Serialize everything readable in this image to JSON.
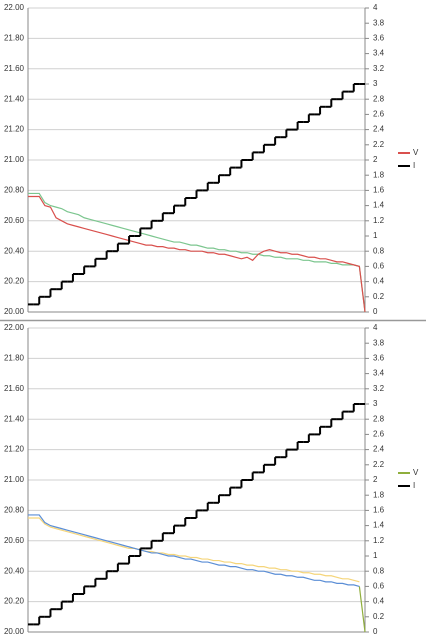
{
  "chart_data": [
    {
      "type": "line",
      "categories": [
        null,
        null,
        null,
        null,
        null,
        null,
        null,
        null,
        null,
        null,
        null,
        null,
        null,
        null,
        null,
        null,
        null,
        null,
        null,
        null,
        null,
        null,
        null,
        null,
        null,
        null,
        null,
        null,
        null,
        null,
        null,
        null,
        null,
        null,
        null,
        null,
        null,
        null,
        null,
        null,
        null,
        null,
        null,
        null,
        null,
        null,
        null,
        null,
        null,
        null,
        null,
        null,
        null,
        null,
        null,
        null,
        null,
        null,
        null,
        null,
        null
      ],
      "ylim": [
        20,
        22
      ],
      "yticks": [
        {
          "value": 20,
          "label": "20.00"
        },
        {
          "value": 20.2,
          "label": "20.20"
        },
        {
          "value": 20.4,
          "label": "20.40"
        },
        {
          "value": 20.6,
          "label": "20.60"
        },
        {
          "value": 20.8,
          "label": "20.80"
        },
        {
          "value": 21,
          "label": "21.00"
        },
        {
          "value": 21.2,
          "label": "21.20"
        },
        {
          "value": 21.4,
          "label": "21.40"
        },
        {
          "value": 21.6,
          "label": "21.60"
        },
        {
          "value": 21.8,
          "label": "21.80"
        },
        {
          "value": 22,
          "label": "22.00"
        }
      ],
      "y2lim": [
        0,
        4
      ],
      "y2ticks": [
        0,
        0.2,
        0.4,
        0.6,
        0.8,
        1,
        1.2,
        1.4,
        1.6,
        1.8,
        2,
        2.2,
        2.4,
        2.6,
        2.8,
        3,
        3.2,
        3.4,
        3.6,
        3.8,
        4
      ],
      "grid": true,
      "series": [
        {
          "color": "#7cc68f",
          "values": [
            20.78,
            20.78,
            20.78,
            20.72,
            20.7,
            20.69,
            20.68,
            20.66,
            20.65,
            20.64,
            20.62,
            20.61,
            20.6,
            20.59,
            20.58,
            20.57,
            20.56,
            20.55,
            20.54,
            20.53,
            20.52,
            20.51,
            20.5,
            20.49,
            20.48,
            20.47,
            20.46,
            20.46,
            20.45,
            20.44,
            20.44,
            20.43,
            20.42,
            20.42,
            20.41,
            20.41,
            20.4,
            20.4,
            20.39,
            20.39,
            20.38,
            20.38,
            20.37,
            20.37,
            20.36,
            20.36,
            20.35,
            20.35,
            20.35,
            20.34,
            20.34,
            20.33,
            20.33,
            20.33,
            20.32,
            20.32,
            20.31,
            20.31,
            20.31,
            20.3,
            20.0
          ]
        },
        {
          "name": "V",
          "color": "#d9504d",
          "values": [
            20.76,
            20.76,
            20.76,
            20.7,
            20.69,
            20.62,
            20.6,
            20.58,
            20.57,
            20.56,
            20.55,
            20.54,
            20.53,
            20.52,
            20.51,
            20.5,
            20.49,
            20.48,
            20.47,
            20.46,
            20.45,
            20.44,
            20.44,
            20.43,
            20.43,
            20.42,
            20.42,
            20.41,
            20.41,
            20.4,
            20.4,
            20.4,
            20.39,
            20.39,
            20.38,
            20.38,
            20.37,
            20.36,
            20.35,
            20.36,
            20.34,
            20.38,
            20.4,
            20.41,
            20.4,
            20.39,
            20.39,
            20.38,
            20.38,
            20.37,
            20.36,
            20.36,
            20.35,
            20.35,
            20.34,
            20.33,
            20.33,
            20.32,
            20.31,
            20.3,
            20.0
          ]
        },
        {
          "name": "I",
          "color": "#000000",
          "axis": "y2",
          "step": true,
          "values": [
            0.1,
            0.1,
            0.2,
            0.2,
            0.3,
            0.3,
            0.4,
            0.4,
            0.5,
            0.5,
            0.6,
            0.6,
            0.7,
            0.7,
            0.8,
            0.8,
            0.9,
            0.9,
            1,
            1,
            1.1,
            1.1,
            1.2,
            1.2,
            1.3,
            1.3,
            1.4,
            1.4,
            1.5,
            1.5,
            1.6,
            1.6,
            1.7,
            1.7,
            1.8,
            1.8,
            1.9,
            1.9,
            2,
            2,
            2.1,
            2.1,
            2.2,
            2.2,
            2.3,
            2.3,
            2.4,
            2.4,
            2.5,
            2.5,
            2.6,
            2.6,
            2.7,
            2.7,
            2.8,
            2.8,
            2.9,
            2.9,
            3,
            3,
            null
          ]
        }
      ]
    },
    {
      "type": "line",
      "categories": [
        null,
        null,
        null,
        null,
        null,
        null,
        null,
        null,
        null,
        null,
        null,
        null,
        null,
        null,
        null,
        null,
        null,
        null,
        null,
        null,
        null,
        null,
        null,
        null,
        null,
        null,
        null,
        null,
        null,
        null,
        null,
        null,
        null,
        null,
        null,
        null,
        null,
        null,
        null,
        null,
        null,
        null,
        null,
        null,
        null,
        null,
        null,
        null,
        null,
        null,
        null,
        null,
        null,
        null,
        null,
        null,
        null,
        null,
        null,
        null,
        null
      ],
      "ylim": [
        20,
        22
      ],
      "yticks": [
        {
          "value": 20,
          "label": "20.00"
        },
        {
          "value": 20.2,
          "label": "20.20"
        },
        {
          "value": 20.4,
          "label": "20.40"
        },
        {
          "value": 20.6,
          "label": "20.60"
        },
        {
          "value": 20.8,
          "label": "20.80"
        },
        {
          "value": 21,
          "label": "21.00"
        },
        {
          "value": 21.2,
          "label": "21.20"
        },
        {
          "value": 21.4,
          "label": "21.40"
        },
        {
          "value": 21.6,
          "label": "21.60"
        },
        {
          "value": 21.8,
          "label": "21.80"
        },
        {
          "value": 22,
          "label": "22.00"
        }
      ],
      "y2lim": [
        0,
        4
      ],
      "y2ticks": [
        0,
        0.2,
        0.4,
        0.6,
        0.8,
        1,
        1.2,
        1.4,
        1.6,
        1.8,
        2,
        2.2,
        2.4,
        2.6,
        2.8,
        3,
        3.2,
        3.4,
        3.6,
        3.8,
        4
      ],
      "grid": true,
      "series": [
        {
          "color": "#f5d57a",
          "values": [
            20.75,
            20.75,
            20.75,
            20.71,
            20.69,
            20.68,
            20.67,
            20.66,
            20.65,
            20.64,
            20.63,
            20.62,
            20.61,
            20.6,
            20.59,
            20.58,
            20.57,
            20.56,
            20.55,
            20.55,
            20.54,
            20.53,
            20.53,
            20.52,
            20.52,
            20.51,
            20.51,
            20.5,
            20.5,
            20.49,
            20.49,
            20.48,
            20.48,
            20.47,
            20.47,
            20.46,
            20.46,
            20.45,
            20.45,
            20.44,
            20.44,
            20.43,
            20.43,
            20.42,
            20.42,
            20.41,
            20.41,
            20.4,
            20.4,
            20.39,
            20.39,
            20.38,
            20.38,
            20.37,
            20.37,
            20.36,
            20.35,
            20.35,
            20.34,
            20.33,
            null
          ]
        },
        {
          "color": "#5b8ed6",
          "values": [
            20.77,
            20.77,
            20.77,
            20.72,
            20.7,
            20.69,
            20.68,
            20.67,
            20.66,
            20.65,
            20.64,
            20.63,
            20.62,
            20.61,
            20.6,
            20.59,
            20.58,
            20.57,
            20.56,
            20.55,
            20.54,
            20.53,
            20.52,
            20.52,
            20.51,
            20.5,
            20.5,
            20.49,
            20.48,
            20.48,
            20.47,
            20.46,
            20.46,
            20.45,
            20.44,
            20.44,
            20.43,
            20.43,
            20.42,
            20.41,
            20.41,
            20.4,
            20.4,
            20.39,
            20.38,
            20.38,
            20.37,
            20.37,
            20.36,
            20.36,
            20.35,
            20.34,
            20.34,
            20.33,
            20.33,
            20.32,
            20.32,
            20.31,
            20.31,
            20.3,
            null
          ]
        },
        {
          "name": "V",
          "color": "#8fae3c",
          "values": [
            null,
            null,
            null,
            null,
            null,
            null,
            null,
            null,
            null,
            null,
            null,
            null,
            null,
            null,
            null,
            null,
            null,
            null,
            null,
            null,
            null,
            null,
            null,
            null,
            null,
            null,
            null,
            null,
            null,
            null,
            null,
            null,
            null,
            null,
            null,
            null,
            null,
            null,
            null,
            null,
            null,
            null,
            null,
            null,
            null,
            null,
            null,
            null,
            null,
            null,
            null,
            null,
            null,
            null,
            null,
            null,
            null,
            null,
            null,
            20.3,
            20.0
          ]
        },
        {
          "name": "I",
          "color": "#000000",
          "axis": "y2",
          "step": true,
          "values": [
            0.1,
            0.1,
            0.2,
            0.2,
            0.3,
            0.3,
            0.4,
            0.4,
            0.5,
            0.5,
            0.6,
            0.6,
            0.7,
            0.7,
            0.8,
            0.8,
            0.9,
            0.9,
            1,
            1,
            1.1,
            1.1,
            1.2,
            1.2,
            1.3,
            1.3,
            1.4,
            1.4,
            1.5,
            1.5,
            1.6,
            1.6,
            1.7,
            1.7,
            1.8,
            1.8,
            1.9,
            1.9,
            2,
            2,
            2.1,
            2.1,
            2.2,
            2.2,
            2.3,
            2.3,
            2.4,
            2.4,
            2.5,
            2.5,
            2.6,
            2.6,
            2.7,
            2.7,
            2.8,
            2.8,
            2.9,
            2.9,
            3,
            3,
            null
          ]
        }
      ]
    }
  ]
}
